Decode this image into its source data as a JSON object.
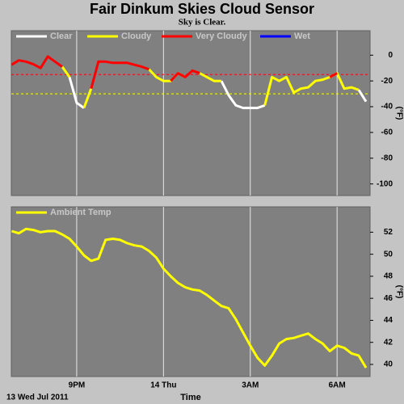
{
  "chart_data": [
    {
      "type": "line",
      "title": "Fair Dinkum Skies Cloud Sensor",
      "subtitle": "Sky is Clear.",
      "y_label": "(°F)",
      "x": [
        18.75,
        19,
        19.25,
        19.5,
        19.75,
        20,
        20.25,
        20.5,
        20.75,
        21,
        21.25,
        21.5,
        21.75,
        22,
        22.25,
        22.5,
        22.75,
        23,
        23.25,
        23.5,
        23.75,
        24,
        24.25,
        24.5,
        24.75,
        25,
        25.25,
        25.5,
        25.75,
        26,
        26.25,
        26.5,
        26.75,
        27,
        27.25,
        27.5,
        27.75,
        28,
        28.25,
        28.5,
        28.75,
        29,
        29.25,
        29.5,
        29.75,
        30,
        30.25,
        30.5,
        30.75,
        31
      ],
      "series": [
        {
          "name": "Clear",
          "color": "#ffffff",
          "values": [
            null,
            null,
            null,
            null,
            null,
            null,
            null,
            null,
            -17,
            -37,
            -41,
            null,
            null,
            null,
            null,
            null,
            null,
            null,
            null,
            null,
            null,
            null,
            null,
            null,
            null,
            null,
            null,
            null,
            null,
            -20,
            -31,
            -39,
            -41,
            -41,
            -41,
            -39,
            null,
            null,
            null,
            null,
            null,
            null,
            null,
            null,
            null,
            null,
            null,
            null,
            -27,
            -36
          ]
        },
        {
          "name": "Cloudy",
          "color": "#ffff00",
          "values": [
            null,
            null,
            null,
            null,
            null,
            null,
            null,
            -9,
            -17,
            null,
            -41,
            -26,
            null,
            null,
            null,
            null,
            null,
            null,
            null,
            -11,
            -17,
            -20,
            -20,
            -14,
            -17,
            null,
            -14,
            -17,
            -20,
            -20,
            null,
            null,
            null,
            null,
            null,
            -39,
            -17,
            -20,
            -17,
            -29,
            -26,
            -25,
            -20,
            -19,
            -17,
            -14,
            -26,
            -25,
            -27,
            null
          ]
        },
        {
          "name": "Very Cloudy",
          "color": "#ff0000",
          "values": [
            -7.5,
            -4,
            -5,
            -7,
            -10,
            -1,
            -5,
            -9,
            null,
            null,
            null,
            -26,
            -5,
            -5,
            -6,
            -6,
            -6,
            -7.5,
            -9,
            -11,
            null,
            null,
            -20,
            -14,
            -17,
            -12,
            -14,
            null,
            null,
            null,
            null,
            null,
            null,
            null,
            null,
            null,
            null,
            null,
            null,
            null,
            null,
            null,
            null,
            null,
            -17,
            -14,
            null,
            null,
            null,
            null
          ]
        },
        {
          "name": "Wet",
          "color": "#0000ff",
          "values": [
            null,
            null,
            null,
            null,
            null,
            null,
            null,
            null,
            null,
            null,
            null,
            null,
            null,
            null,
            null,
            null,
            null,
            null,
            null,
            null,
            null,
            null,
            null,
            null,
            null,
            null,
            null,
            null,
            null,
            null,
            null,
            null,
            null,
            null,
            null,
            null,
            null,
            null,
            null,
            null,
            null,
            null,
            null,
            null,
            null,
            null,
            null,
            null,
            null,
            null
          ]
        }
      ],
      "reference_lines": [
        {
          "value": -15,
          "color": "#ff0000"
        },
        {
          "value": -30,
          "color": "#ffff00"
        }
      ],
      "xlim": [
        18.74,
        31.14
      ],
      "xticks": [
        21,
        24,
        27,
        30
      ],
      "ylim": [
        -109,
        19
      ],
      "yticks": [
        0,
        -20,
        -40,
        -60,
        -80,
        -100
      ],
      "grid": true
    },
    {
      "type": "line",
      "y_label": "(°F)",
      "x_label": "Time",
      "date_label": "13 Wed Jul 2011",
      "x": [
        18.75,
        19,
        19.25,
        19.5,
        19.75,
        20,
        20.25,
        20.5,
        20.75,
        21,
        21.25,
        21.5,
        21.75,
        22,
        22.25,
        22.5,
        22.75,
        23,
        23.25,
        23.5,
        23.75,
        24,
        24.25,
        24.5,
        24.75,
        25,
        25.25,
        25.5,
        25.75,
        26,
        26.25,
        26.5,
        26.75,
        27,
        27.25,
        27.5,
        27.75,
        28,
        28.25,
        28.5,
        28.75,
        29,
        29.25,
        29.5,
        29.75,
        30,
        30.25,
        30.5,
        30.75,
        31
      ],
      "series": [
        {
          "name": "Ambient Temp",
          "color": "#ffff00",
          "values": [
            52.1,
            51.9,
            52.3,
            52.2,
            52.0,
            52.1,
            52.1,
            51.8,
            51.4,
            50.7,
            49.9,
            49.4,
            49.6,
            51.3,
            51.4,
            51.3,
            51.0,
            50.8,
            50.7,
            50.3,
            49.7,
            48.7,
            48.0,
            47.4,
            47.0,
            46.8,
            46.7,
            46.3,
            45.8,
            45.3,
            45.1,
            44.1,
            42.9,
            41.7,
            40.6,
            39.9,
            40.8,
            41.9,
            42.3,
            42.4,
            42.6,
            42.8,
            42.3,
            41.9,
            41.2,
            41.7,
            41.5,
            41.0,
            40.8,
            39.7
          ]
        }
      ],
      "xlim": [
        18.74,
        31.14
      ],
      "xticks": [
        {
          "value": 21,
          "label": "9PM"
        },
        {
          "value": 24,
          "label": "14 Thu"
        },
        {
          "value": 27,
          "label": "3AM"
        },
        {
          "value": 30,
          "label": "6AM"
        }
      ],
      "ylim": [
        38.9,
        54.3
      ],
      "yticks": [
        40,
        42,
        44,
        46,
        48,
        50,
        52
      ],
      "grid": true
    }
  ]
}
